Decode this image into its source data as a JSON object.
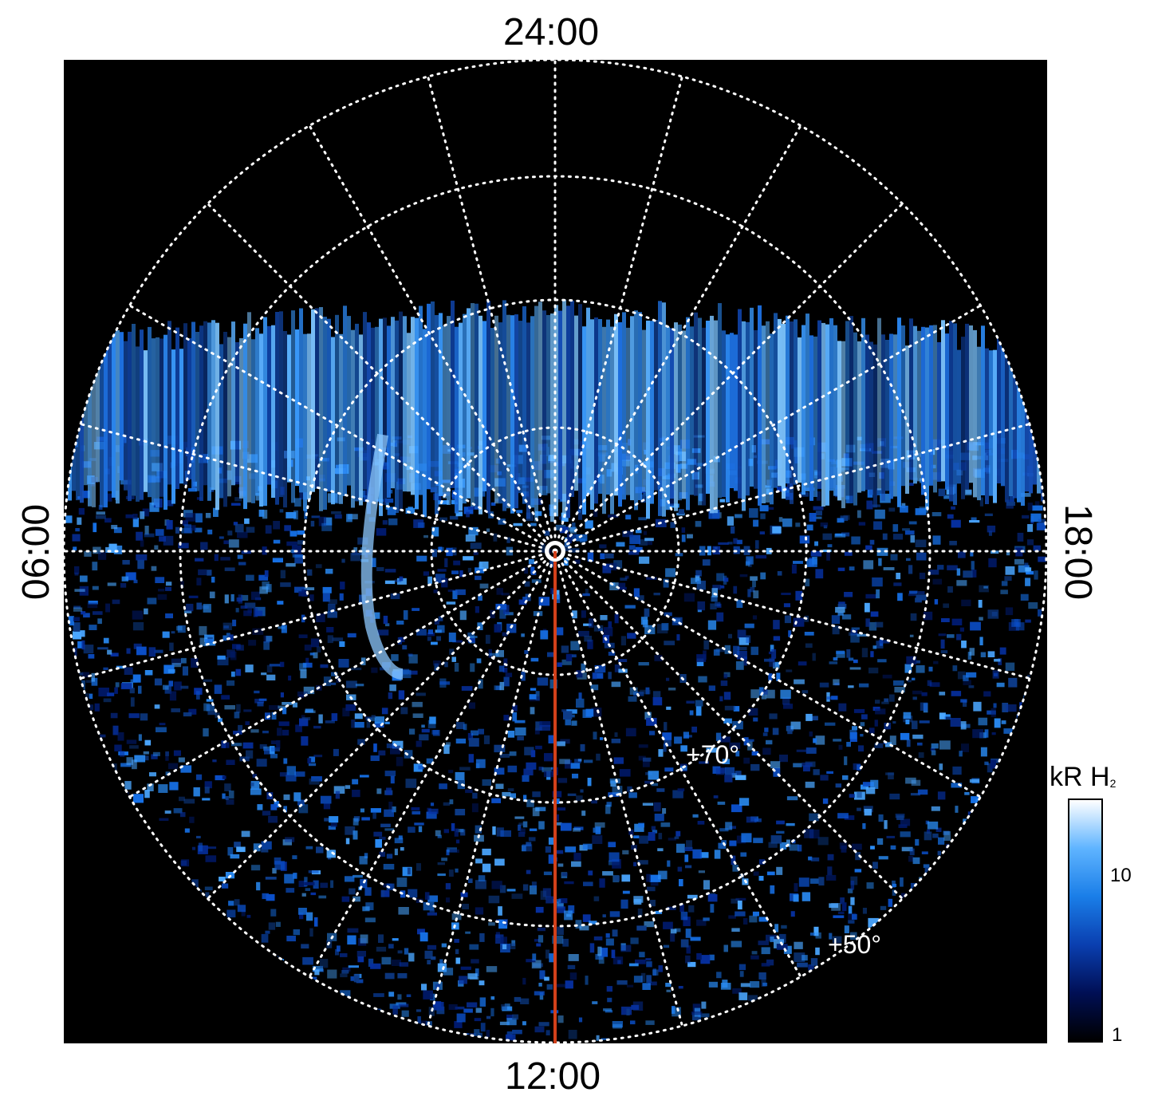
{
  "labels": {
    "top": "24:00",
    "bottom": "12:00",
    "left": "06:00",
    "right": "18:00",
    "lat_70": "+70°",
    "lat_50": "+50°"
  },
  "colorbar": {
    "title": "kR H",
    "title_sub": "2",
    "tick_10": "10",
    "tick_1": "1",
    "stops": [
      "#000000",
      "#000f55",
      "#0a3fb0",
      "#1a7ee8",
      "#5fb4ff",
      "#ffffff"
    ]
  },
  "colors": {
    "background": "#000000",
    "grid": "#ffffff",
    "meridian_line": "#d2401a"
  }
}
